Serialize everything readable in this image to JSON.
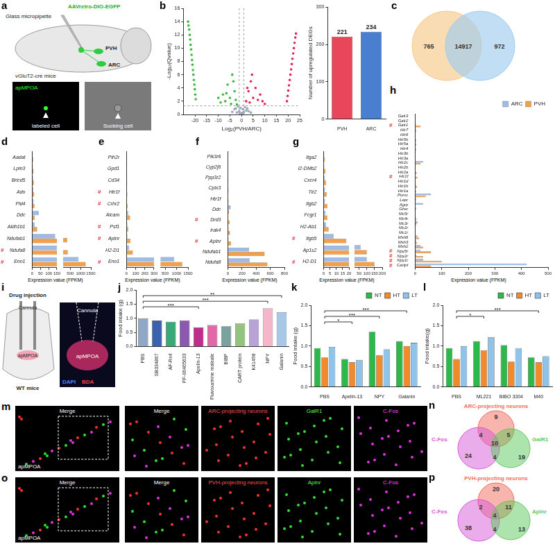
{
  "chart_data": [
    {
      "panel": "b",
      "type": "scatter",
      "xlabel": "Log₂(PVH/ARC)",
      "ylabel": "-Log₁₀(Qvalue)",
      "xlim": [
        -25,
        25
      ],
      "xticks": [
        -20,
        -15,
        -10,
        -5,
        0,
        5,
        10,
        15,
        20,
        25
      ],
      "ylim": [
        0,
        16
      ],
      "yticks": [
        0,
        2,
        4,
        6,
        8,
        10,
        12,
        14,
        16
      ],
      "reference_lines": {
        "x": [
          -1,
          1
        ],
        "y": [
          1.3
        ]
      },
      "series": [
        {
          "color": "#3cb93c",
          "x": [
            -23,
            -22.8,
            -22.5,
            -22.3,
            -22.1,
            -21.9,
            -21.7,
            -21.5,
            -21.3,
            -21.1,
            -20.9,
            -20.7,
            -20.5,
            -20.3,
            -20.1,
            -19.9,
            -19.7,
            -10,
            -9,
            -8,
            -7,
            -6.5,
            -6,
            -5,
            -4.5,
            -4,
            -3.5,
            -3,
            -2.5,
            -2
          ],
          "values": [
            14,
            13.4,
            12.8,
            12,
            11.3,
            10.5,
            9.8,
            9,
            8.2,
            7.5,
            6.7,
            6,
            5.2,
            4.5,
            3.8,
            3,
            2.3,
            2.5,
            1.8,
            3,
            2,
            3.2,
            4.5,
            2.5,
            1.6,
            6,
            5,
            3.5,
            2.2,
            1.5
          ]
        },
        {
          "color": "#e0245e",
          "x": [
            19.5,
            19.8,
            20.1,
            20.4,
            20.7,
            21,
            21.3,
            21.6,
            21.9,
            22.2,
            22.5,
            22.8,
            23.1,
            23.4,
            2,
            2.5,
            3,
            3.5,
            4,
            4.5,
            5,
            6,
            7,
            8,
            9,
            10
          ],
          "values": [
            2,
            2.8,
            3.6,
            4.4,
            5.2,
            6,
            6.8,
            7.6,
            8.4,
            9.2,
            10,
            10.8,
            11.6,
            12.2,
            2,
            4,
            3.5,
            1.8,
            5,
            6,
            2.5,
            4,
            2.2,
            3,
            2,
            1.6
          ]
        },
        {
          "color": "#9aa6b8",
          "x": [
            -4,
            -3,
            -2,
            -1.5,
            -1,
            -0.5,
            0,
            0.2,
            0.5,
            1,
            1.5,
            2,
            3,
            4,
            -2.5,
            2.5,
            -0.8,
            0.8
          ],
          "values": [
            0.4,
            0.8,
            0.3,
            1.2,
            0.5,
            1,
            0.2,
            0.1,
            0.8,
            0.4,
            1.1,
            0.6,
            0.5,
            0.3,
            0.9,
            0.9,
            0.2,
            0.3
          ]
        }
      ]
    },
    {
      "type": "bar",
      "categories": [
        "PVH",
        "ARC"
      ],
      "values": [
        221,
        234
      ],
      "colors": [
        "#e8465a",
        "#4a7fd0"
      ],
      "ylabel": "Number of upregulated DEGs",
      "ylim": [
        0,
        300
      ],
      "yticks": [
        0,
        100,
        200,
        300
      ],
      "data_labels": true
    },
    {
      "panel": "d",
      "type": "bar",
      "orientation": "horizontal",
      "categories": [
        "Aadat",
        "Lpin3",
        "Bricd5",
        "Ado",
        "Pld4",
        "Ddc",
        "Aldh1b1",
        "Ndufab1",
        "Ndufa8",
        "Eno1"
      ],
      "series": [
        {
          "color": "#9dbbe8",
          "values": [
            3,
            4,
            5,
            6,
            8,
            40,
            15,
            140,
            150,
            900
          ]
        },
        {
          "color": "#f2a04a",
          "values": [
            6,
            8,
            10,
            12,
            14,
            15,
            30,
            350,
            380,
            1250
          ]
        }
      ],
      "xlabel": "Expression value (FPKM)",
      "xlim": [
        0,
        1500
      ],
      "xticks": [
        0,
        50,
        100,
        150,
        500,
        1000,
        1500
      ],
      "axis_break": 150,
      "annotations": [
        {
          "text": "#",
          "category": "Ndufa8"
        },
        {
          "text": "#",
          "category": "Eno1"
        }
      ]
    },
    {
      "panel": "e",
      "type": "bar",
      "orientation": "horizontal",
      "categories": [
        "Pth2r",
        "Gpd1",
        "Cd34",
        "Htr1f",
        "Crhr2",
        "Alcam",
        "Psf1",
        "Aplnr",
        "H2-D1",
        "Eno1"
      ],
      "series": [
        {
          "color": "#9dbbe8",
          "values": [
            2,
            3,
            3,
            2,
            4,
            20,
            10,
            10,
            30,
            900
          ]
        },
        {
          "color": "#f2a04a",
          "values": [
            5,
            7,
            8,
            10,
            15,
            40,
            20,
            45,
            70,
            1250
          ]
        }
      ],
      "xlabel": "Expression value (FPKM)",
      "xlim": [
        0,
        1500
      ],
      "xticks": [
        0,
        100,
        200,
        300,
        500,
        1000,
        1500
      ],
      "axis_break": 300,
      "annotations": [
        {
          "text": "#",
          "category": "Htr1f"
        },
        {
          "text": "#",
          "category": "Crhr2"
        },
        {
          "text": "#",
          "category": "Psf1"
        },
        {
          "text": "#",
          "category": "Aplnr"
        },
        {
          "text": "#",
          "category": "Eno1"
        }
      ]
    },
    {
      "panel": "f",
      "type": "bar",
      "orientation": "horizontal",
      "categories": [
        "Pik3r6",
        "Cyp2j6",
        "Ppp3r2",
        "Cplx3",
        "Htr1f",
        "Ddc",
        "Drd3",
        "Irak4",
        "Aplnr",
        "Ndufab1",
        "Ndufa8"
      ],
      "series": [
        {
          "color": "#9dbbe8",
          "values": [
            2,
            3,
            3,
            4,
            2,
            40,
            5,
            10,
            10,
            300,
            310
          ]
        },
        {
          "color": "#f2a04a",
          "values": [
            5,
            6,
            8,
            10,
            10,
            15,
            25,
            30,
            45,
            520,
            560
          ]
        }
      ],
      "xlabel": "Expression value (FPKM)",
      "xlim": [
        0,
        800
      ],
      "xticks": [
        0,
        200,
        400,
        600,
        800
      ],
      "annotations": [
        {
          "text": "#",
          "category": "Drd3"
        },
        {
          "text": "#",
          "category": "Aplnr"
        }
      ]
    },
    {
      "panel": "g",
      "type": "bar",
      "orientation": "horizontal",
      "categories": [
        "Itga2",
        "H2-DMb2",
        "Cxcr4",
        "Tlr2",
        "Itgb2",
        "Fcgr1",
        "H2-Ab1",
        "Itgb5",
        "Ap1s2",
        "H2-D1"
      ],
      "series": [
        {
          "color": "#9dbbe8",
          "values": [
            0.5,
            0.5,
            0.8,
            1,
            1,
            1.5,
            2,
            8,
            60,
            100
          ]
        },
        {
          "color": "#f2a04a",
          "values": [
            1,
            1.5,
            2,
            2.5,
            3,
            3,
            4,
            18,
            100,
            150
          ]
        }
      ],
      "xlabel": "Expression value (FPKM)",
      "xlim": [
        0,
        200
      ],
      "xticks": [
        0,
        5,
        10,
        15,
        20,
        50,
        100,
        150,
        200
      ],
      "axis_break": 20,
      "annotations": [
        {
          "text": "#",
          "category": "Itgb5"
        },
        {
          "text": "#",
          "category": "H2-D1"
        }
      ]
    },
    {
      "panel": "h",
      "type": "bar",
      "orientation": "horizontal",
      "categories": [
        "Galr3",
        "Galr2",
        "Galr1",
        "Htr7",
        "Htr6",
        "Htr5b",
        "Htr5a",
        "Htr4",
        "Htr3b",
        "Htr3a",
        "Htr2c",
        "Htr2b",
        "Htr2a",
        "Htr1f",
        "Htr1d",
        "Htr1b",
        "Htr1a",
        "Pomc",
        "Lepr",
        "Agrp",
        "Ghsr",
        "Mc5r",
        "Mc4r",
        "Mc3r",
        "Mc2r",
        "Mc1r",
        "Msh6",
        "Msh3",
        "Msh2",
        "Npy5r",
        "Npy2r",
        "Npy1r",
        "Cartpt"
      ],
      "series": [
        {
          "name": "ARC",
          "color": "#9dbbe8",
          "values": [
            1,
            1,
            3,
            3,
            1,
            2,
            3,
            2,
            0,
            0.5,
            30,
            1,
            2,
            2,
            1,
            3,
            2,
            60,
            5,
            30,
            5,
            0.5,
            3,
            10,
            0.5,
            0.5,
            10,
            5,
            20,
            20,
            5,
            30,
            420
          ]
        },
        {
          "name": "PVH",
          "color": "#f2a04a",
          "values": [
            1,
            2,
            20,
            5,
            2,
            4,
            5,
            4,
            0.5,
            1,
            20,
            2,
            6,
            10,
            2,
            8,
            4,
            40,
            3,
            2,
            2,
            0.5,
            6,
            5,
            0.5,
            1,
            15,
            8,
            30,
            60,
            30,
            100,
            60
          ]
        }
      ],
      "legend": "top-right",
      "xlabel": "Expression value (FPKM)",
      "xlim": [
        0,
        500
      ],
      "xticks": [
        0,
        100,
        200,
        300,
        400,
        500
      ],
      "annotations": [
        {
          "text": "#",
          "category": "Galr1"
        },
        {
          "text": "#",
          "category": "Htr1f"
        },
        {
          "text": "#",
          "category": "Npy5r"
        },
        {
          "text": "#",
          "category": "Npy2r"
        },
        {
          "text": "#",
          "category": "Npy1r"
        },
        {
          "text": "#",
          "category": "Cartpt"
        }
      ]
    },
    {
      "panel": "j",
      "type": "bar",
      "categories": [
        "PBS",
        "SB334867",
        "AF-Rs4",
        "PF-06465633",
        "Apelin-13",
        "Fluvoxamine maleate",
        "BIBP",
        "CART protein",
        "K41498",
        "NPY",
        "Galanin"
      ],
      "values": [
        1.0,
        0.92,
        0.88,
        0.93,
        0.68,
        0.76,
        0.72,
        0.82,
        0.96,
        1.35,
        1.22
      ],
      "colors": [
        "#8fa8c8",
        "#3a62b0",
        "#3aa97a",
        "#8b5ab0",
        "#c02c8c",
        "#e06aa8",
        "#7aa3a0",
        "#93c47d",
        "#b9a3d6",
        "#f4b6c8",
        "#a8c8e8"
      ],
      "ylabel": "Food intake (g)",
      "ylim": [
        0,
        2
      ],
      "yticks": [
        {
          "value": 0,
          "label": "0.0"
        },
        {
          "value": 0.5,
          "label": "0.5"
        },
        {
          "value": 1,
          "label": "1.0"
        },
        {
          "value": 1.5,
          "label": "1.5"
        },
        {
          "value": 2,
          "label": "2.0"
        }
      ],
      "annotations": [
        {
          "text": "**",
          "from": "PBS",
          "to": "Galanin"
        },
        {
          "text": "***",
          "from": "PBS",
          "to": "NPY"
        },
        {
          "text": "***",
          "from": "PBS",
          "to": "Apelin-13"
        }
      ]
    },
    {
      "panel": "k",
      "type": "bar",
      "categories": [
        "PBS",
        "Apelin-13",
        "NPY",
        "Galanin"
      ],
      "series": [
        {
          "name": "NT",
          "color": "#2db84a",
          "values": [
            0.95,
            0.68,
            1.35,
            1.12
          ]
        },
        {
          "name": "HT",
          "color": "#f08a2a",
          "values": [
            0.72,
            0.6,
            0.78,
            1.0
          ]
        },
        {
          "name": "LT",
          "color": "#8fc3ea",
          "values": [
            0.98,
            0.66,
            0.92,
            1.08
          ]
        }
      ],
      "legend": "top-right",
      "ylabel": "Food intake (g)",
      "ylim": [
        0,
        2
      ],
      "yticks": [
        {
          "value": 0,
          "label": "0.0"
        },
        {
          "value": 0.5,
          "label": "0.5"
        },
        {
          "value": 1,
          "label": "1.0"
        },
        {
          "value": 1.5,
          "label": "1.5"
        },
        {
          "value": 2,
          "label": "2.0"
        }
      ],
      "annotations": [
        {
          "text": "***",
          "from": "PBS",
          "to": "Galanin"
        },
        {
          "text": "***",
          "from": "PBS",
          "to": "NPY"
        },
        {
          "text": "*",
          "from": "PBS",
          "to": "Apelin-13"
        }
      ]
    },
    {
      "panel": "l",
      "type": "bar",
      "categories": [
        "PBS",
        "ML221",
        "BIBO 3304",
        "M40"
      ],
      "series": [
        {
          "name": "NT",
          "color": "#2db84a",
          "values": [
            0.95,
            1.12,
            1.02,
            0.72
          ]
        },
        {
          "name": "HT",
          "color": "#f08a2a",
          "values": [
            0.68,
            0.9,
            0.62,
            0.6
          ]
        },
        {
          "name": "LT",
          "color": "#8fc3ea",
          "values": [
            1.0,
            1.22,
            0.95,
            0.75
          ]
        }
      ],
      "legend": "top-right",
      "ylabel": "Food intake(g)",
      "ylim": [
        0,
        2
      ],
      "yticks": [
        {
          "value": 0,
          "label": "0.0"
        },
        {
          "value": 0.5,
          "label": "0.5"
        },
        {
          "value": 1,
          "label": "1.0"
        },
        {
          "value": 1.5,
          "label": "1.5"
        },
        {
          "value": 2,
          "label": "2.0"
        }
      ],
      "annotations": [
        {
          "text": "***",
          "from": "PBS",
          "to": "M40"
        },
        {
          "text": "*",
          "from": "PBS",
          "to": "ML221"
        }
      ]
    }
  ],
  "venn_diagrams": [
    {
      "panel": "c",
      "sets": [
        {
          "color": "#f7c98a"
        },
        {
          "color": "#9fcdf0"
        }
      ],
      "values": {
        "a": 765,
        "ab": 14917,
        "b": 972
      }
    },
    {
      "panel": "n",
      "sets": [
        {
          "name": "ARC-projecting neurons",
          "color": "#f26b5b"
        },
        {
          "name": "C-Fos",
          "color": "#d65ad6"
        },
        {
          "name": "GalR1",
          "color": "#5cc85c"
        }
      ],
      "values": {
        "a": 9,
        "b": 24,
        "c": 19,
        "ab": 4,
        "ac": 5,
        "bc": 4,
        "abc": 10
      }
    },
    {
      "panel": "p",
      "sets": [
        {
          "name": "PVH-projecting neurons",
          "color": "#f26b5b"
        },
        {
          "name": "C-Fos",
          "color": "#d65ad6"
        },
        {
          "name": "Aplnr",
          "color": "#5cc85c"
        }
      ],
      "values": {
        "a": 20,
        "b": 38,
        "c": 13,
        "ab": 2,
        "ac": 11,
        "bc": 4,
        "abc": 4
      }
    }
  ],
  "schematics": {
    "a": {
      "panel": "a",
      "vector": "AAVretro-DIO-EGFP",
      "pipette": "Glass micropipette",
      "pvh": "PVH",
      "arc": "ARC",
      "mouse": "vGluT2-cre mice",
      "region": "apMPOA",
      "left_caption": "labeled cell",
      "right_caption": "Sucking cell"
    },
    "i": {
      "panel": "i",
      "title": "Drug injection",
      "cannula": "Cannula",
      "region": "apMPOA",
      "mouse": "WT mice",
      "image_cannula": "Cannula",
      "stain1": "DAPI",
      "stain2": "BDA",
      "image_region": "apMPOA"
    }
  },
  "micrographs": [
    {
      "panel": "m",
      "region": "apMPOA",
      "titles": [
        "Merge",
        "Merge",
        "ARC-projecting neurons",
        "GalR1",
        "C-Fos"
      ]
    },
    {
      "panel": "o",
      "region": "apMPOA",
      "titles": [
        "Merge",
        "Merge",
        "PVH-projecting neurons",
        "Aplnr",
        "C-Fos"
      ]
    }
  ]
}
